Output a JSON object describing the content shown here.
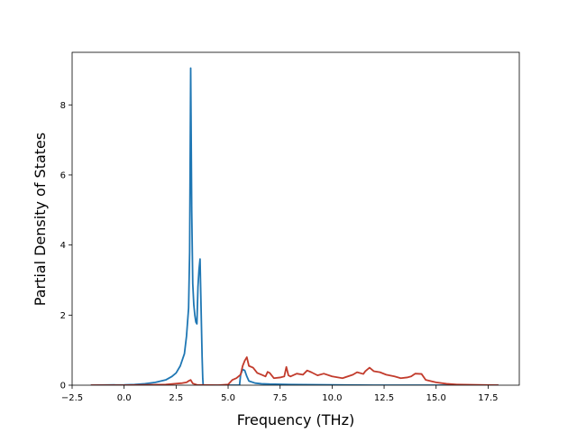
{
  "chart_data": {
    "type": "line",
    "title": "",
    "xlabel": "Frequency (THz)",
    "ylabel": "Partial Density of States",
    "xlim": [
      -2.5,
      19.0
    ],
    "ylim": [
      0,
      9.5
    ],
    "x_ticks": [
      -2.5,
      0.0,
      2.5,
      5.0,
      7.5,
      10.0,
      12.5,
      15.0,
      17.5
    ],
    "x_tick_labels": [
      "−2.5",
      "0.0",
      "2.5",
      "5.0",
      "7.5",
      "10.0",
      "12.5",
      "15.0",
      "17.5"
    ],
    "y_ticks": [
      0,
      2,
      4,
      6,
      8
    ],
    "y_tick_labels": [
      "0",
      "2",
      "4",
      "6",
      "8"
    ],
    "grid": false,
    "legend": "none",
    "series": [
      {
        "color": "#1f77b4",
        "x": [
          -1.6,
          0.0,
          0.5,
          1.0,
          1.5,
          2.0,
          2.3,
          2.5,
          2.7,
          2.9,
          3.0,
          3.1,
          3.15,
          3.2,
          3.25,
          3.3,
          3.35,
          3.4,
          3.45,
          3.5,
          3.55,
          3.6,
          3.65,
          3.7,
          3.75,
          3.78,
          3.8,
          4.0,
          5.0,
          5.55,
          5.6,
          5.7,
          5.8,
          5.9,
          6.0,
          6.3,
          6.6,
          7.0,
          8.0,
          10.0,
          12.0,
          18.0
        ],
        "y": [
          0.0,
          0.01,
          0.02,
          0.04,
          0.08,
          0.15,
          0.25,
          0.35,
          0.55,
          0.9,
          1.4,
          2.2,
          3.8,
          9.05,
          5.0,
          2.9,
          2.3,
          2.0,
          1.8,
          1.75,
          2.8,
          3.3,
          3.6,
          2.2,
          0.8,
          0.2,
          0.0,
          0.0,
          0.0,
          0.0,
          0.3,
          0.45,
          0.42,
          0.25,
          0.12,
          0.06,
          0.04,
          0.03,
          0.02,
          0.01,
          0.0,
          0.0
        ]
      },
      {
        "color": "#c23b2c",
        "x": [
          -1.6,
          0.0,
          2.0,
          2.8,
          3.0,
          3.1,
          3.2,
          3.3,
          3.5,
          4.5,
          5.0,
          5.2,
          5.4,
          5.6,
          5.7,
          5.8,
          5.9,
          6.0,
          6.2,
          6.4,
          6.6,
          6.8,
          6.9,
          7.0,
          7.2,
          7.5,
          7.7,
          7.8,
          7.9,
          8.0,
          8.3,
          8.6,
          8.8,
          9.0,
          9.3,
          9.6,
          10.0,
          10.5,
          11.0,
          11.2,
          11.5,
          11.6,
          11.8,
          12.0,
          12.3,
          12.6,
          13.0,
          13.3,
          13.6,
          13.8,
          14.0,
          14.3,
          14.5,
          15.0,
          15.5,
          16.0,
          17.0,
          18.0
        ],
        "y": [
          0.0,
          0.0,
          0.02,
          0.06,
          0.08,
          0.12,
          0.15,
          0.05,
          0.01,
          0.0,
          0.02,
          0.15,
          0.2,
          0.3,
          0.55,
          0.7,
          0.8,
          0.55,
          0.5,
          0.35,
          0.3,
          0.25,
          0.38,
          0.35,
          0.2,
          0.22,
          0.25,
          0.52,
          0.28,
          0.25,
          0.33,
          0.3,
          0.42,
          0.37,
          0.28,
          0.33,
          0.25,
          0.2,
          0.3,
          0.37,
          0.32,
          0.4,
          0.5,
          0.4,
          0.37,
          0.3,
          0.25,
          0.2,
          0.22,
          0.25,
          0.33,
          0.32,
          0.15,
          0.08,
          0.04,
          0.02,
          0.01,
          0.0
        ]
      }
    ]
  }
}
